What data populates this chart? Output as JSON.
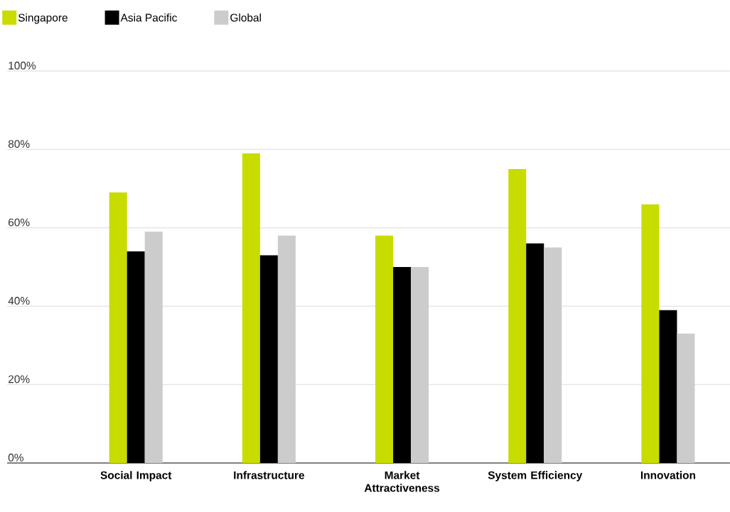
{
  "chart_data": {
    "type": "bar",
    "categories": [
      "Social Impact",
      "Infrastructure",
      "Market Attractiveness",
      "System Efficiency",
      "Innovation"
    ],
    "series": [
      {
        "name": "Singapore",
        "color": "#c8dc00",
        "values": [
          69,
          79,
          58,
          75,
          66
        ]
      },
      {
        "name": "Asia Pacific",
        "color": "#000000",
        "values": [
          54,
          53,
          50,
          56,
          39
        ]
      },
      {
        "name": "Global",
        "color": "#cccccc",
        "values": [
          59,
          58,
          50,
          55,
          33
        ]
      }
    ],
    "ylim": [
      0,
      100
    ],
    "yticks": [
      {
        "value": 0,
        "label": "0%"
      },
      {
        "value": 20,
        "label": "20%"
      },
      {
        "value": 40,
        "label": "40%"
      },
      {
        "value": 60,
        "label": "60%"
      },
      {
        "value": 80,
        "label": "80%"
      },
      {
        "value": 100,
        "label": "100%"
      }
    ],
    "grid": "y",
    "legend": "top left"
  }
}
